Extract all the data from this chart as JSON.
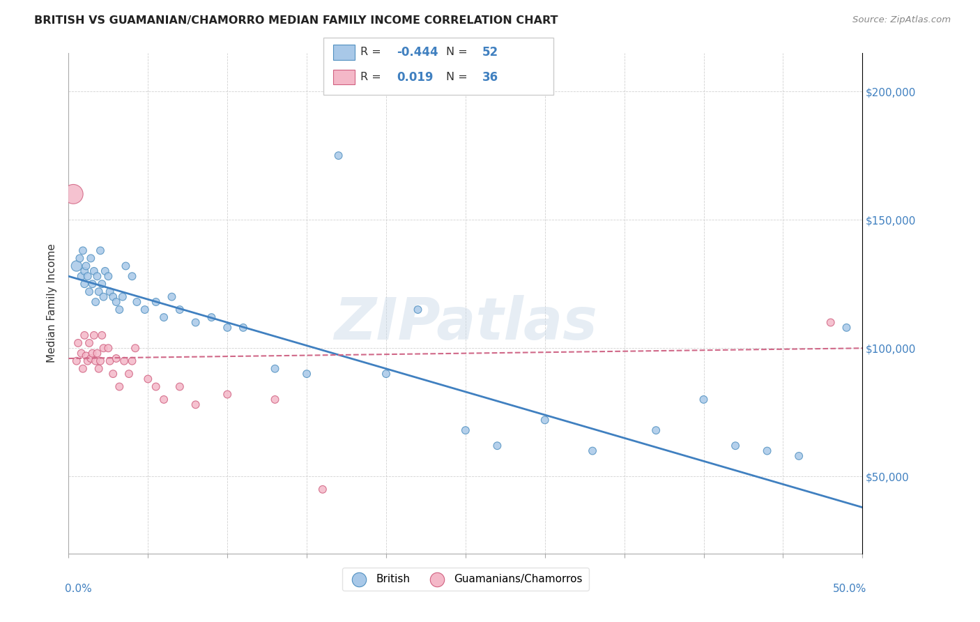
{
  "title": "BRITISH VS GUAMANIAN/CHAMORRO MEDIAN FAMILY INCOME CORRELATION CHART",
  "source": "Source: ZipAtlas.com",
  "ylabel": "Median Family Income",
  "xlim": [
    0,
    0.5
  ],
  "ylim": [
    20000,
    215000
  ],
  "yticks_right": [
    50000,
    100000,
    150000,
    200000
  ],
  "ytick_labels_right": [
    "$50,000",
    "$100,000",
    "$150,000",
    "$200,000"
  ],
  "watermark": "ZIPatlas",
  "blue_color": "#a8c8e8",
  "pink_color": "#f4b8c8",
  "blue_edge_color": "#5090c0",
  "pink_edge_color": "#d06080",
  "blue_line_color": "#4080c0",
  "pink_line_color": "#d06888",
  "british_x": [
    0.005,
    0.007,
    0.008,
    0.009,
    0.01,
    0.01,
    0.011,
    0.012,
    0.013,
    0.014,
    0.015,
    0.016,
    0.017,
    0.018,
    0.019,
    0.02,
    0.021,
    0.022,
    0.023,
    0.025,
    0.026,
    0.028,
    0.03,
    0.032,
    0.034,
    0.036,
    0.04,
    0.043,
    0.048,
    0.055,
    0.06,
    0.065,
    0.07,
    0.08,
    0.09,
    0.1,
    0.11,
    0.13,
    0.15,
    0.17,
    0.2,
    0.22,
    0.25,
    0.27,
    0.3,
    0.33,
    0.37,
    0.4,
    0.42,
    0.44,
    0.46,
    0.49
  ],
  "british_y": [
    132000,
    135000,
    128000,
    138000,
    130000,
    125000,
    132000,
    128000,
    122000,
    135000,
    125000,
    130000,
    118000,
    128000,
    122000,
    138000,
    125000,
    120000,
    130000,
    128000,
    122000,
    120000,
    118000,
    115000,
    120000,
    132000,
    128000,
    118000,
    115000,
    118000,
    112000,
    120000,
    115000,
    110000,
    112000,
    108000,
    108000,
    92000,
    90000,
    175000,
    90000,
    115000,
    68000,
    62000,
    72000,
    60000,
    68000,
    80000,
    62000,
    60000,
    58000,
    108000
  ],
  "british_sizes": [
    120,
    60,
    60,
    60,
    60,
    60,
    60,
    60,
    60,
    60,
    60,
    60,
    60,
    60,
    60,
    60,
    60,
    60,
    60,
    60,
    60,
    60,
    60,
    60,
    60,
    60,
    60,
    60,
    60,
    60,
    60,
    60,
    60,
    60,
    60,
    60,
    60,
    60,
    60,
    60,
    60,
    60,
    60,
    60,
    60,
    60,
    60,
    60,
    60,
    60,
    60,
    60
  ],
  "guam_x": [
    0.003,
    0.005,
    0.006,
    0.008,
    0.009,
    0.01,
    0.011,
    0.012,
    0.013,
    0.014,
    0.015,
    0.016,
    0.017,
    0.018,
    0.019,
    0.02,
    0.021,
    0.022,
    0.025,
    0.026,
    0.028,
    0.03,
    0.032,
    0.035,
    0.038,
    0.04,
    0.042,
    0.05,
    0.055,
    0.06,
    0.07,
    0.08,
    0.1,
    0.13,
    0.16,
    0.48
  ],
  "guam_y": [
    160000,
    95000,
    102000,
    98000,
    92000,
    105000,
    97000,
    95000,
    102000,
    96000,
    98000,
    105000,
    95000,
    98000,
    92000,
    95000,
    105000,
    100000,
    100000,
    95000,
    90000,
    96000,
    85000,
    95000,
    90000,
    95000,
    100000,
    88000,
    85000,
    80000,
    85000,
    78000,
    82000,
    80000,
    45000,
    110000
  ],
  "guam_sizes": [
    400,
    60,
    60,
    60,
    60,
    60,
    60,
    60,
    60,
    60,
    60,
    60,
    60,
    60,
    60,
    60,
    60,
    60,
    60,
    60,
    60,
    60,
    60,
    60,
    60,
    60,
    60,
    60,
    60,
    60,
    60,
    60,
    60,
    60,
    60,
    60
  ],
  "british_trend": [
    -180000,
    128000
  ],
  "guam_trend": [
    8000,
    96000
  ],
  "xtick_positions": [
    0.0,
    0.05,
    0.1,
    0.15,
    0.2,
    0.25,
    0.3,
    0.35,
    0.4,
    0.45,
    0.5
  ],
  "ytick_positions": [
    50000,
    100000,
    150000,
    200000
  ]
}
